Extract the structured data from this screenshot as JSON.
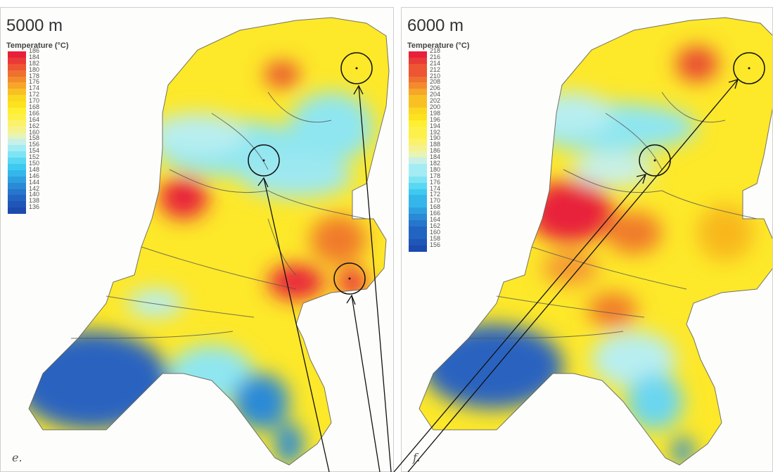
{
  "panels": [
    {
      "depth": "5000 m",
      "legend_title": "Temperature (°C)",
      "letter": "e.",
      "ticks": [
        "186",
        "184",
        "182",
        "180",
        "178",
        "176",
        "174",
        "172",
        "170",
        "168",
        "166",
        "164",
        "162",
        "160",
        "158",
        "156",
        "154",
        "152",
        "150",
        "148",
        "146",
        "144",
        "142",
        "140",
        "138",
        "136"
      ]
    },
    {
      "depth": "6000 m",
      "legend_title": "Temperature (°C)",
      "letter": "f.",
      "ticks": [
        "218",
        "216",
        "214",
        "212",
        "210",
        "208",
        "206",
        "204",
        "202",
        "200",
        "198",
        "196",
        "194",
        "192",
        "190",
        "188",
        "186",
        "184",
        "182",
        "180",
        "178",
        "176",
        "174",
        "172",
        "170",
        "168",
        "166",
        "164",
        "162",
        "160",
        "158",
        "156"
      ]
    }
  ],
  "scale_colors": [
    "#e8203a",
    "#ea3a36",
    "#ed5533",
    "#f07030",
    "#f38b2c",
    "#f6a628",
    "#f9c024",
    "#fbd820",
    "#fde21e",
    "#fef030",
    "#fdf04a",
    "#faf26a",
    "#f5f28e",
    "#e6f4b4",
    "#c8f0e6",
    "#a4ecf4",
    "#7ee4f4",
    "#58d8f2",
    "#3ecaf0",
    "#34b6ea",
    "#2ea0e0",
    "#2a8ad6",
    "#2676cc",
    "#2264c2",
    "#1f56b8",
    "#1c4aae"
  ],
  "colors": {
    "hot": "#e8203a",
    "warm": "#f8b81f",
    "mild": "#fde82a",
    "cool": "#8fe6f0",
    "cold": "#2a63bf",
    "boundary": "#555555",
    "annotation": "#111111"
  }
}
